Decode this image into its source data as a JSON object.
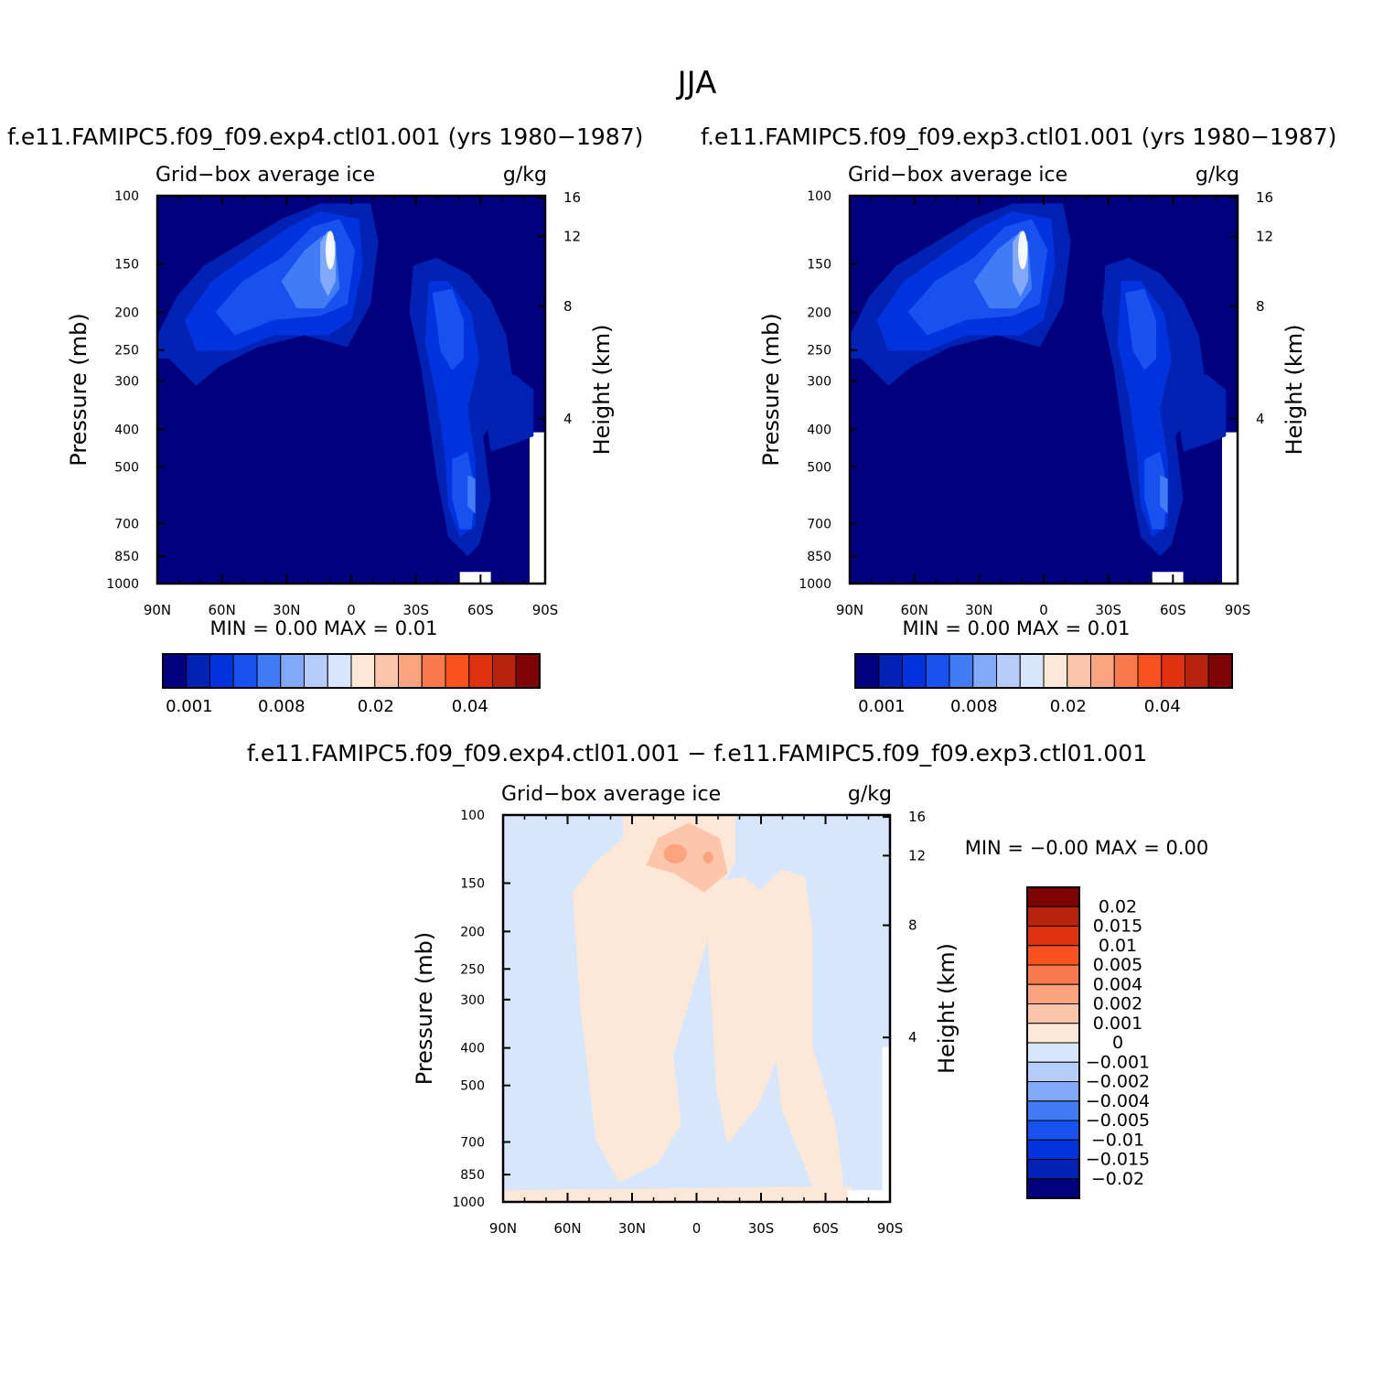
{
  "figure_title": "JJA",
  "diff_title": "f.e11.FAMIPC5.f09_f09.exp4.ctl01.001 − f.e11.FAMIPC5.f09_f09.exp3.ctl01.001",
  "colors": {
    "seq_palette": [
      "#00007f",
      "#0022b3",
      "#0033dd",
      "#1752f0",
      "#3f7cf5",
      "#82a8f8",
      "#b6cdfb",
      "#d6e6fc",
      "#fde8d8",
      "#fdc5aa",
      "#fca37f",
      "#fb7a4d",
      "#f9521f",
      "#e03211",
      "#b7230d",
      "#7e0404"
    ],
    "diff_palette": [
      "#00007f",
      "#0022b3",
      "#0033dd",
      "#1752f0",
      "#3f7cf5",
      "#82a8f8",
      "#b6cdfb",
      "#d6e6fc",
      "#fde8d8",
      "#fdc5aa",
      "#fca37f",
      "#fb7a4d",
      "#f9521f",
      "#e03211",
      "#b7230d",
      "#7e0404"
    ]
  },
  "chart_data": [
    {
      "type": "heatmap",
      "title": "f.e11.FAMIPC5.f09_f09.exp4.ctl01.001 (yrs 1980−1987)",
      "subtitle_left": "Grid−box average ice",
      "subtitle_right": "g/kg",
      "xlabel": "",
      "ylabel": "Pressure (mb)",
      "ylabel_right": "Height (km)",
      "x_ticks": [
        "90N",
        "60N",
        "30N",
        "0",
        "30S",
        "60S",
        "90S"
      ],
      "y_ticks": [
        "100",
        "150",
        "200",
        "250",
        "300",
        "400",
        "500",
        "700",
        "850",
        "1000"
      ],
      "y_right_ticks": [
        "16",
        "12",
        "8",
        "4"
      ],
      "y_scale": "log",
      "min_max": "MIN =    0.00   MAX =    0.01",
      "levels": [
        "0.001",
        "0.008",
        "0.02",
        "0.04"
      ],
      "field": "seq_exp4"
    },
    {
      "type": "heatmap",
      "title": "f.e11.FAMIPC5.f09_f09.exp3.ctl01.001 (yrs 1980−1987)",
      "subtitle_left": "Grid−box average ice",
      "subtitle_right": "g/kg",
      "xlabel": "",
      "ylabel": "Pressure (mb)",
      "ylabel_right": "Height (km)",
      "x_ticks": [
        "90N",
        "60N",
        "30N",
        "0",
        "30S",
        "60S",
        "90S"
      ],
      "y_ticks": [
        "100",
        "150",
        "200",
        "250",
        "300",
        "400",
        "500",
        "700",
        "850",
        "1000"
      ],
      "y_right_ticks": [
        "16",
        "12",
        "8",
        "4"
      ],
      "y_scale": "log",
      "min_max": "MIN =    0.00   MAX =    0.01",
      "levels": [
        "0.001",
        "0.008",
        "0.02",
        "0.04"
      ],
      "field": "seq_exp3"
    },
    {
      "type": "heatmap",
      "title": "",
      "subtitle_left": "Grid−box average ice",
      "subtitle_right": "g/kg",
      "xlabel": "",
      "ylabel": "Pressure (mb)",
      "ylabel_right": "Height (km)",
      "x_ticks": [
        "90N",
        "60N",
        "30N",
        "0",
        "30S",
        "60S",
        "90S"
      ],
      "y_ticks": [
        "100",
        "150",
        "200",
        "250",
        "300",
        "400",
        "500",
        "700",
        "850",
        "1000"
      ],
      "y_right_ticks": [
        "16",
        "12",
        "8",
        "4"
      ],
      "y_scale": "log",
      "min_max": "MIN =  −0.00   MAX =    0.00",
      "levels": [
        "0.02",
        "0.015",
        "0.01",
        "0.005",
        "0.004",
        "0.002",
        "0.001",
        "0",
        "−0.001",
        "−0.002",
        "−0.004",
        "−0.005",
        "−0.01",
        "−0.015",
        "−0.02"
      ],
      "field": "diff"
    }
  ]
}
